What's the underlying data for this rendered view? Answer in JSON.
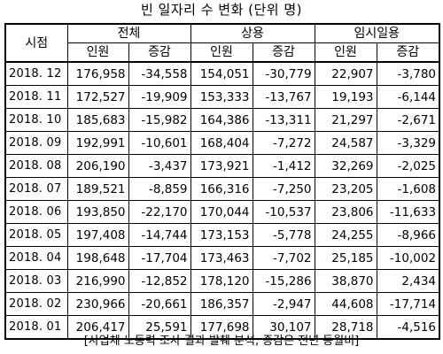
{
  "title": "빈 일자리 수 변화 (단위 명)",
  "header": {
    "period": "시점",
    "groups": [
      "전체",
      "상용",
      "임시일용"
    ],
    "sub": [
      "인원",
      "증감",
      "인원",
      "증감",
      "인원",
      "증감"
    ]
  },
  "rows": [
    {
      "period": "2018. 12",
      "cells": [
        "176,958",
        "-34,558",
        "154,051",
        "-30,779",
        "22,907",
        "-3,780"
      ]
    },
    {
      "period": "2018. 11",
      "cells": [
        "172,527",
        "-19,909",
        "153,333",
        "-13,767",
        "19,193",
        "-6,144"
      ]
    },
    {
      "period": "2018. 10",
      "cells": [
        "185,683",
        "-15,982",
        "164,386",
        "-13,311",
        "21,297",
        "-2,671"
      ]
    },
    {
      "period": "2018. 09",
      "cells": [
        "192,991",
        "-10,601",
        "168,404",
        "-7,272",
        "24,587",
        "-3,329"
      ]
    },
    {
      "period": "2018. 08",
      "cells": [
        "206,190",
        "-3,437",
        "173,921",
        "-1,412",
        "32,269",
        "-2,025"
      ]
    },
    {
      "period": "2018. 07",
      "cells": [
        "189,521",
        "-8,859",
        "166,316",
        "-7,250",
        "23,205",
        "-1,608"
      ]
    },
    {
      "period": "2018. 06",
      "cells": [
        "193,850",
        "-22,170",
        "170,044",
        "-10,537",
        "23,806",
        "-11,633"
      ]
    },
    {
      "period": "2018. 05",
      "cells": [
        "197,408",
        "-14,744",
        "173,153",
        "-5,778",
        "24,255",
        "-8,966"
      ]
    },
    {
      "period": "2018. 04",
      "cells": [
        "198,648",
        "-17,704",
        "173,463",
        "-7,702",
        "25,185",
        "-10,002"
      ]
    },
    {
      "period": "2018. 03",
      "cells": [
        "216,990",
        "-12,852",
        "178,120",
        "-15,286",
        "38,870",
        "2,434"
      ]
    },
    {
      "period": "2018. 02",
      "cells": [
        "230,966",
        "-20,661",
        "186,357",
        "-2,947",
        "44,608",
        "-17,714"
      ]
    },
    {
      "period": "2018. 01",
      "cells": [
        "206,417",
        "25,591",
        "177,698",
        "30,107",
        "28,718",
        "-4,516"
      ]
    }
  ],
  "footnote": "[사업체 노동력 조사 결과 발췌 분석, 증감은 전년 동월비]"
}
